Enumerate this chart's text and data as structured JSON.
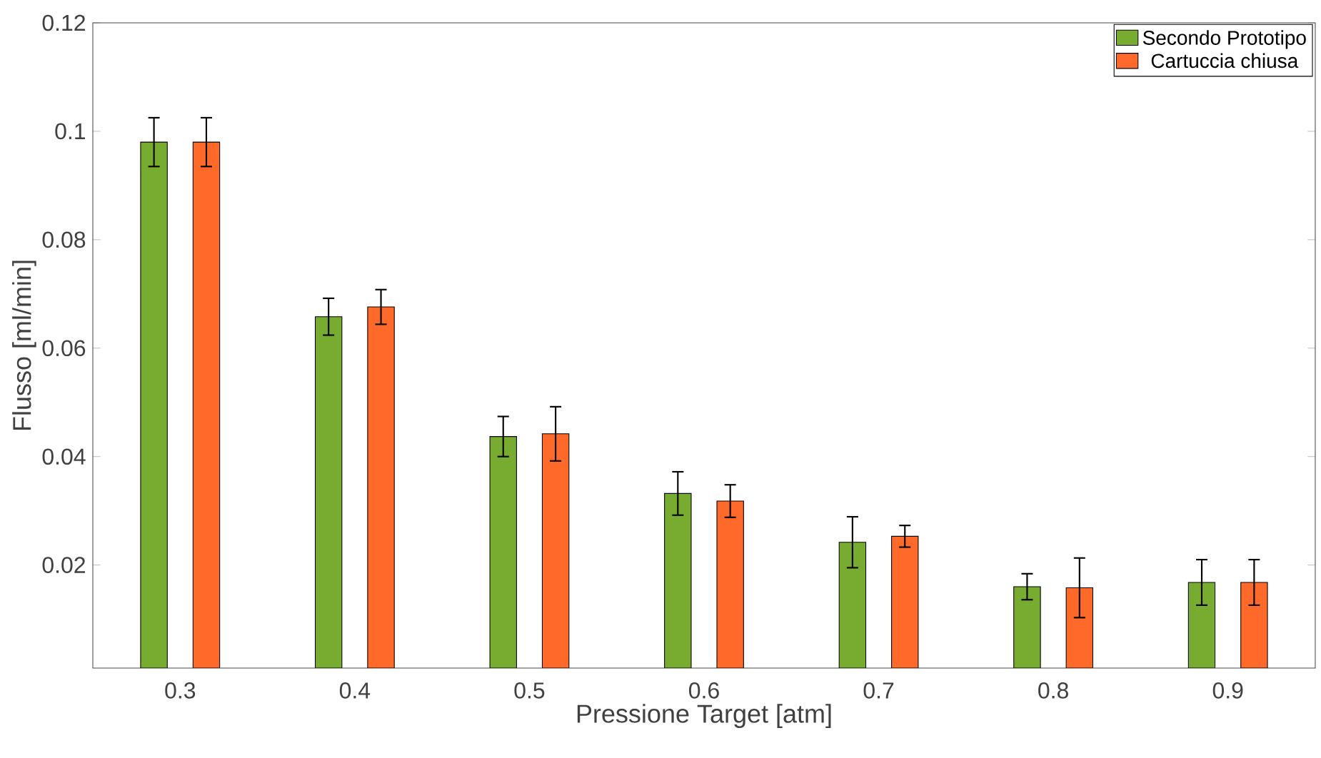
{
  "chart_data": {
    "type": "bar",
    "xlabel": "Pressione Target [atm]",
    "ylabel": "Flusso [ml/min]",
    "categories": [
      "0.3",
      "0.4",
      "0.5",
      "0.6",
      "0.7",
      "0.8",
      "0.9"
    ],
    "series": [
      {
        "name": "Secondo Prototipo",
        "color": "#77ac30",
        "values": [
          0.098,
          0.0658,
          0.0437,
          0.0332,
          0.0242,
          0.016,
          0.0168
        ],
        "errors": [
          0.0045,
          0.0034,
          0.0037,
          0.004,
          0.0047,
          0.0024,
          0.0042
        ]
      },
      {
        "name": "Cartuccia chiusa",
        "color": "#ff6929",
        "values": [
          0.098,
          0.0676,
          0.0442,
          0.0318,
          0.0253,
          0.0158,
          0.0168
        ],
        "errors": [
          0.0045,
          0.0032,
          0.005,
          0.003,
          0.002,
          0.0055,
          0.0042
        ]
      }
    ],
    "ylim": [
      0.001,
      0.12
    ],
    "yticks": [
      0.02,
      0.04,
      0.06,
      0.08,
      0.1,
      0.12
    ],
    "grid": false,
    "legend": "top right"
  }
}
